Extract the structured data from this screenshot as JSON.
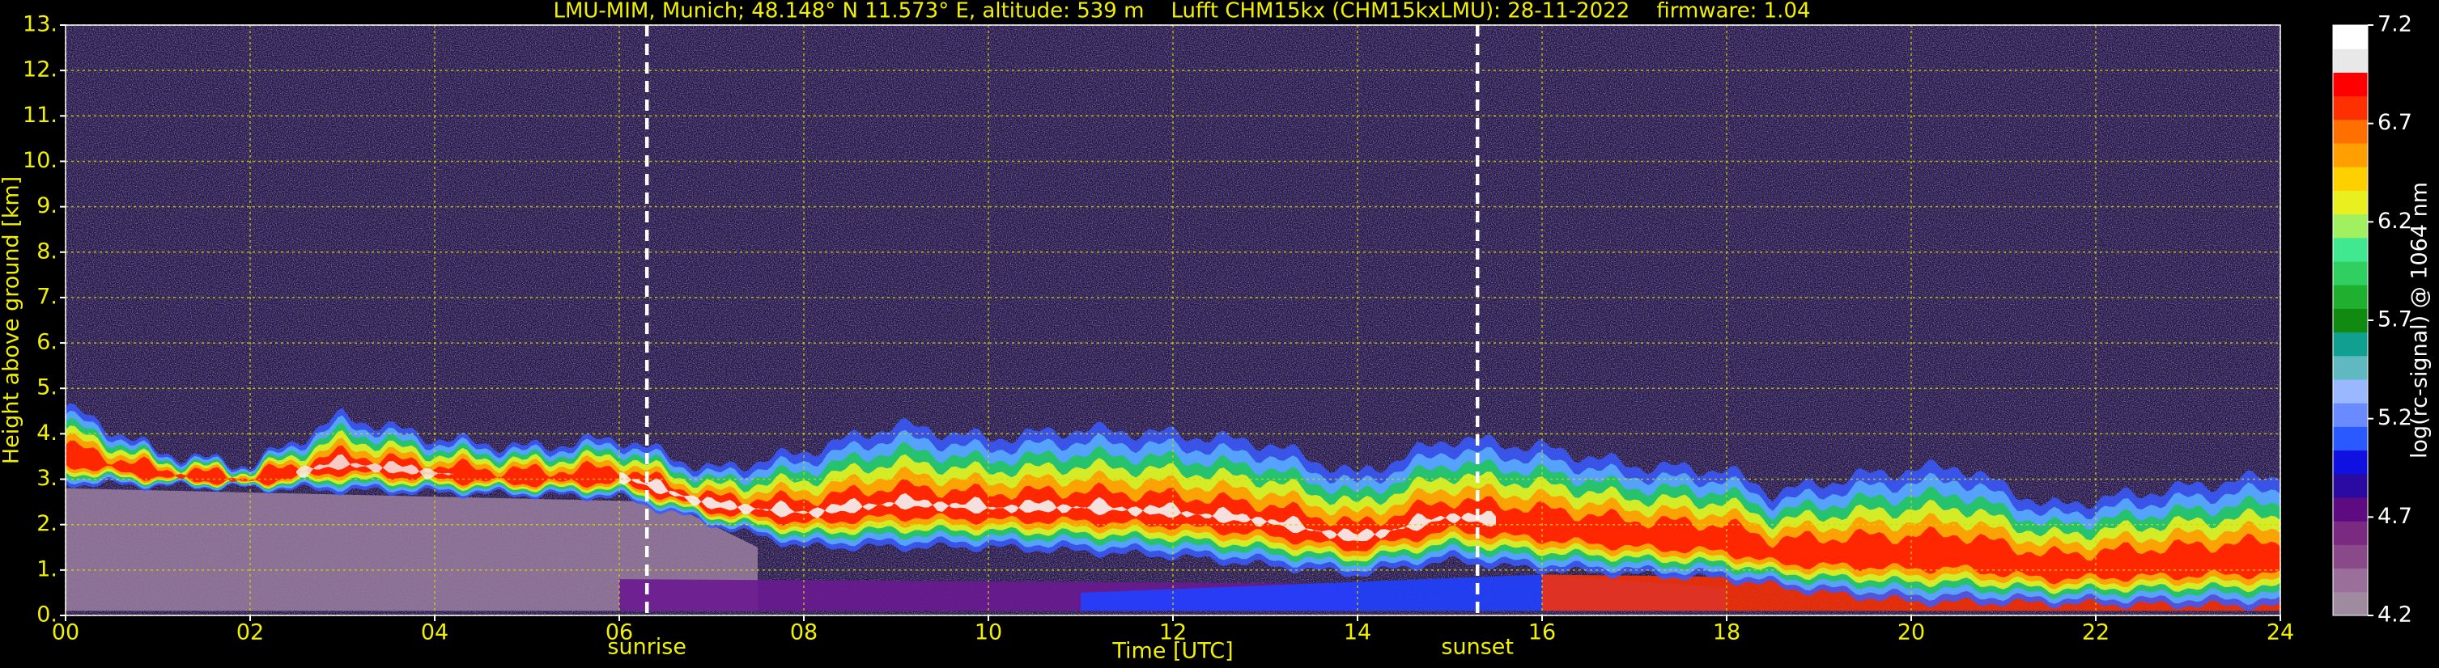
{
  "chart_data": {
    "type": "heatmap",
    "title": "LMU-MIM, Munich; 48.148° N 11.573° E, altitude: 539 m    Lufft CHM15kx (CHM15kxLMU): 28-11-2022    firmware: 1.04",
    "x_label": "Time [UTC]",
    "y_label": "Height above ground [km]",
    "xlim": [
      0,
      24
    ],
    "xticks": [
      {
        "value": 0,
        "label": "00"
      },
      {
        "value": 2,
        "label": "02"
      },
      {
        "value": 4,
        "label": "04"
      },
      {
        "value": 6,
        "label": "06"
      },
      {
        "value": 8,
        "label": "08"
      },
      10,
      12,
      14,
      16,
      18,
      20,
      22,
      24
    ],
    "ylim": [
      0,
      13
    ],
    "yticks": [
      {
        "value": 0,
        "label": "0."
      },
      {
        "value": 1,
        "label": "1."
      },
      {
        "value": 2,
        "label": "2."
      },
      {
        "value": 3,
        "label": "3."
      },
      {
        "value": 4,
        "label": "4."
      },
      {
        "value": 5,
        "label": "5."
      },
      {
        "value": 6,
        "label": "6."
      },
      {
        "value": 7,
        "label": "7."
      },
      {
        "value": 8,
        "label": "8."
      },
      {
        "value": 9,
        "label": "9."
      },
      {
        "value": 10,
        "label": "10."
      },
      {
        "value": 11,
        "label": "11."
      },
      {
        "value": 12,
        "label": "12."
      },
      {
        "value": 13,
        "label": "13."
      }
    ],
    "grid": true,
    "annotations": [
      {
        "text": "sunrise",
        "x": 6.3
      },
      {
        "text": "sunset",
        "x": 15.3
      }
    ],
    "colorbar": {
      "label": "log(rc-signal) @ 1064 nm",
      "lim": [
        4.2,
        7.2
      ],
      "ticks": [
        4.2,
        4.7,
        5.2,
        5.7,
        6.2,
        6.7,
        7.2
      ],
      "colors": [
        "#a08aa0",
        "#9a6f9a",
        "#8a4a8a",
        "#7a2a80",
        "#5e0a80",
        "#2a0aa0",
        "#1010e0",
        "#2a5aff",
        "#6a8aff",
        "#9ab8ff",
        "#60b8c0",
        "#10a090",
        "#108a10",
        "#20b030",
        "#30d060",
        "#40e890",
        "#a0f060",
        "#e8f020",
        "#ffd000",
        "#ffa000",
        "#ff7000",
        "#ff3000",
        "#ff0000",
        "#e8e8e8",
        "#ffffff"
      ]
    }
  }
}
